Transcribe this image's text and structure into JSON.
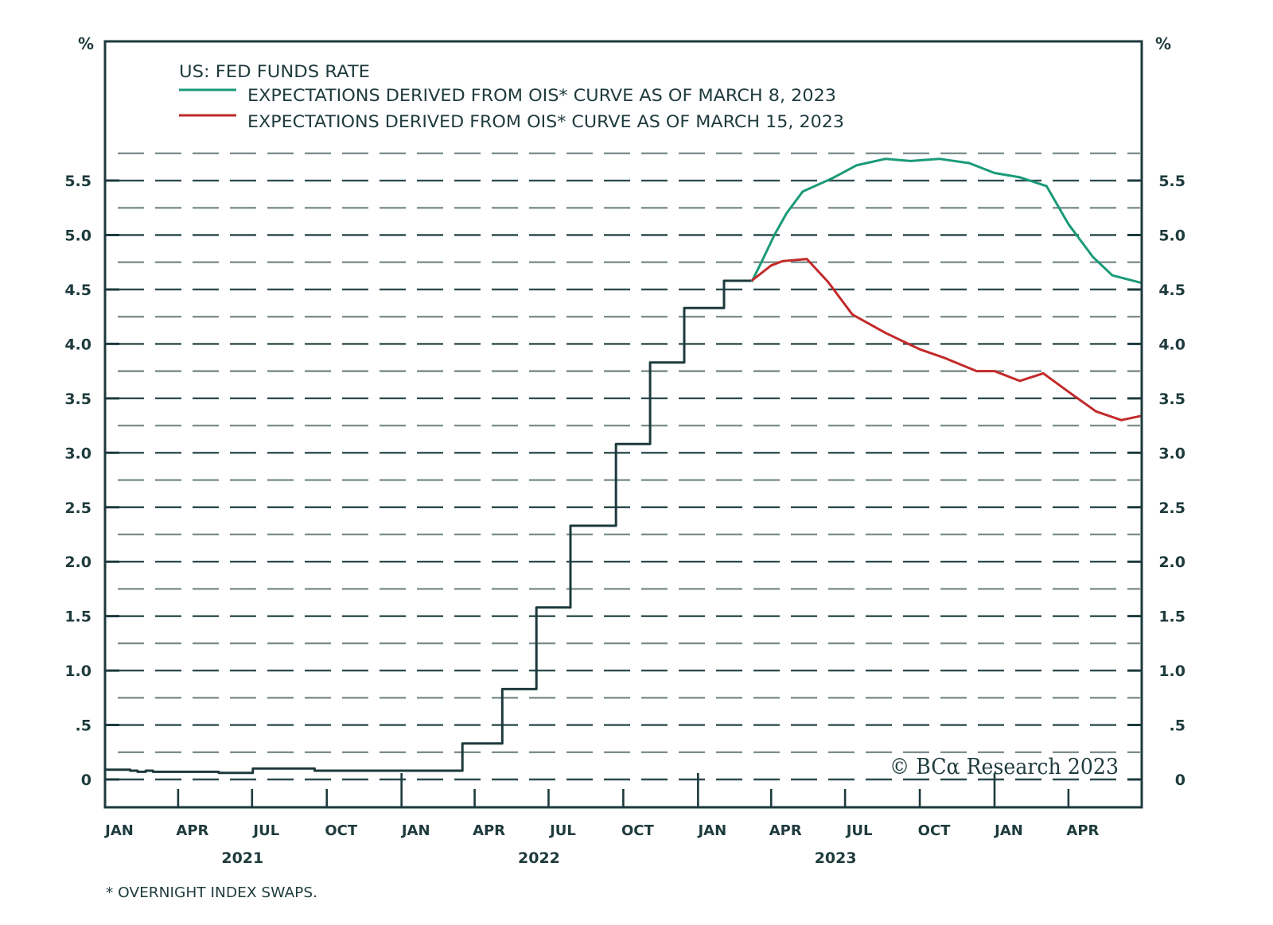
{
  "chart_data": {
    "type": "line",
    "title": "US: FED FUNDS RATE",
    "ylabel_left": "%",
    "ylabel_right": "%",
    "ylim": [
      -0.25,
      6.78
    ],
    "yticks": [
      0,
      0.5,
      1.0,
      1.5,
      2.0,
      2.5,
      3.0,
      3.5,
      4.0,
      4.5,
      5.0,
      5.5
    ],
    "ytick_labels": [
      "0",
      ".5",
      "1.0",
      "1.5",
      "2.0",
      "2.5",
      "3.0",
      "3.5",
      "4.0",
      "4.5",
      "5.0",
      "5.5"
    ],
    "grid": "horizontal dashed every 0.25",
    "grid_range": [
      0,
      5.75
    ],
    "xlim": [
      "2021-01-01",
      "2024-06-30"
    ],
    "xticks": [
      {
        "label": "JAN",
        "date": "2021-01"
      },
      {
        "label": "APR",
        "date": "2021-04"
      },
      {
        "label": "JUL",
        "date": "2021-07"
      },
      {
        "label": "OCT",
        "date": "2021-10"
      },
      {
        "label": "JAN",
        "date": "2022-01"
      },
      {
        "label": "APR",
        "date": "2022-04"
      },
      {
        "label": "JUL",
        "date": "2022-07"
      },
      {
        "label": "OCT",
        "date": "2022-10"
      },
      {
        "label": "JAN",
        "date": "2023-01"
      },
      {
        "label": "APR",
        "date": "2023-04"
      },
      {
        "label": "JUL",
        "date": "2023-07"
      },
      {
        "label": "OCT",
        "date": "2023-10"
      },
      {
        "label": "JAN",
        "date": "2024-01"
      },
      {
        "label": "APR",
        "date": "2024-04"
      }
    ],
    "year_labels": [
      {
        "label": "2021",
        "date": "2021-07"
      },
      {
        "label": "2022",
        "date": "2022-07"
      },
      {
        "label": "2023",
        "date": "2023-07"
      }
    ],
    "series": [
      {
        "name": "US: FED FUNDS RATE",
        "color": "#1d3a3d",
        "step": true,
        "points": [
          [
            "2021-01-01",
            0.09
          ],
          [
            "2021-02-01",
            0.08
          ],
          [
            "2021-02-10",
            0.07
          ],
          [
            "2021-02-20",
            0.08
          ],
          [
            "2021-03-01",
            0.07
          ],
          [
            "2021-05-20",
            0.07
          ],
          [
            "2021-05-21",
            0.06
          ],
          [
            "2021-07-01",
            0.06
          ],
          [
            "2021-07-02",
            0.1
          ],
          [
            "2021-09-15",
            0.1
          ],
          [
            "2021-09-16",
            0.08
          ],
          [
            "2022-03-16",
            0.08
          ],
          [
            "2022-03-17",
            0.33
          ],
          [
            "2022-05-04",
            0.33
          ],
          [
            "2022-05-05",
            0.83
          ],
          [
            "2022-06-15",
            0.83
          ],
          [
            "2022-06-16",
            1.58
          ],
          [
            "2022-07-27",
            1.58
          ],
          [
            "2022-07-28",
            2.33
          ],
          [
            "2022-09-21",
            2.33
          ],
          [
            "2022-09-22",
            3.08
          ],
          [
            "2022-11-02",
            3.08
          ],
          [
            "2022-11-03",
            3.83
          ],
          [
            "2022-12-14",
            3.83
          ],
          [
            "2022-12-15",
            4.33
          ],
          [
            "2023-02-01",
            4.33
          ],
          [
            "2023-02-02",
            4.58
          ],
          [
            "2023-03-08",
            4.57
          ]
        ]
      },
      {
        "name": "EXPECTATIONS DERIVED FROM OIS* CURVE AS OF MARCH 8, 2023",
        "color": "#1a9a78",
        "step": false,
        "points": [
          [
            "2023-03-08",
            4.57
          ],
          [
            "2023-03-20",
            4.75
          ],
          [
            "2023-04-05",
            5.0
          ],
          [
            "2023-04-20",
            5.2
          ],
          [
            "2023-05-10",
            5.4
          ],
          [
            "2023-06-15",
            5.52
          ],
          [
            "2023-07-15",
            5.64
          ],
          [
            "2023-08-20",
            5.7
          ],
          [
            "2023-09-20",
            5.68
          ],
          [
            "2023-10-25",
            5.7
          ],
          [
            "2023-12-01",
            5.66
          ],
          [
            "2024-01-01",
            5.57
          ],
          [
            "2024-02-01",
            5.53
          ],
          [
            "2024-03-05",
            5.45
          ],
          [
            "2024-04-01",
            5.1
          ],
          [
            "2024-05-01",
            4.8
          ],
          [
            "2024-05-25",
            4.63
          ],
          [
            "2024-06-30",
            4.56
          ]
        ]
      },
      {
        "name": "EXPECTATIONS DERIVED FROM OIS* CURVE AS OF MARCH 15, 2023",
        "color": "#c22a2a",
        "step": false,
        "points": [
          [
            "2023-03-08",
            4.58
          ],
          [
            "2023-04-01",
            4.72
          ],
          [
            "2023-04-15",
            4.76
          ],
          [
            "2023-05-15",
            4.78
          ],
          [
            "2023-06-10",
            4.57
          ],
          [
            "2023-07-10",
            4.27
          ],
          [
            "2023-08-20",
            4.1
          ],
          [
            "2023-10-01",
            3.95
          ],
          [
            "2023-11-01",
            3.87
          ],
          [
            "2023-12-10",
            3.75
          ],
          [
            "2024-01-01",
            3.75
          ],
          [
            "2024-02-01",
            3.66
          ],
          [
            "2024-03-01",
            3.73
          ],
          [
            "2024-04-01",
            3.56
          ],
          [
            "2024-05-05",
            3.38
          ],
          [
            "2024-06-05",
            3.3
          ],
          [
            "2024-06-30",
            3.34
          ]
        ]
      }
    ],
    "legend_position": "top-left",
    "annotation": "© BCα Research 2023",
    "footnote": "* OVERNIGHT INDEX SWAPS."
  },
  "labels": {
    "pct_left": "%",
    "pct_right": "%",
    "legend_title": "US: FED FUNDS RATE",
    "legend_green": "EXPECTATIONS DERIVED FROM OIS* CURVE AS OF MARCH 8, 2023",
    "legend_red": "EXPECTATIONS DERIVED FROM OIS* CURVE AS OF MARCH 15, 2023",
    "copyright": "© BCα Research 2023",
    "footnote": "* OVERNIGHT INDEX SWAPS."
  }
}
